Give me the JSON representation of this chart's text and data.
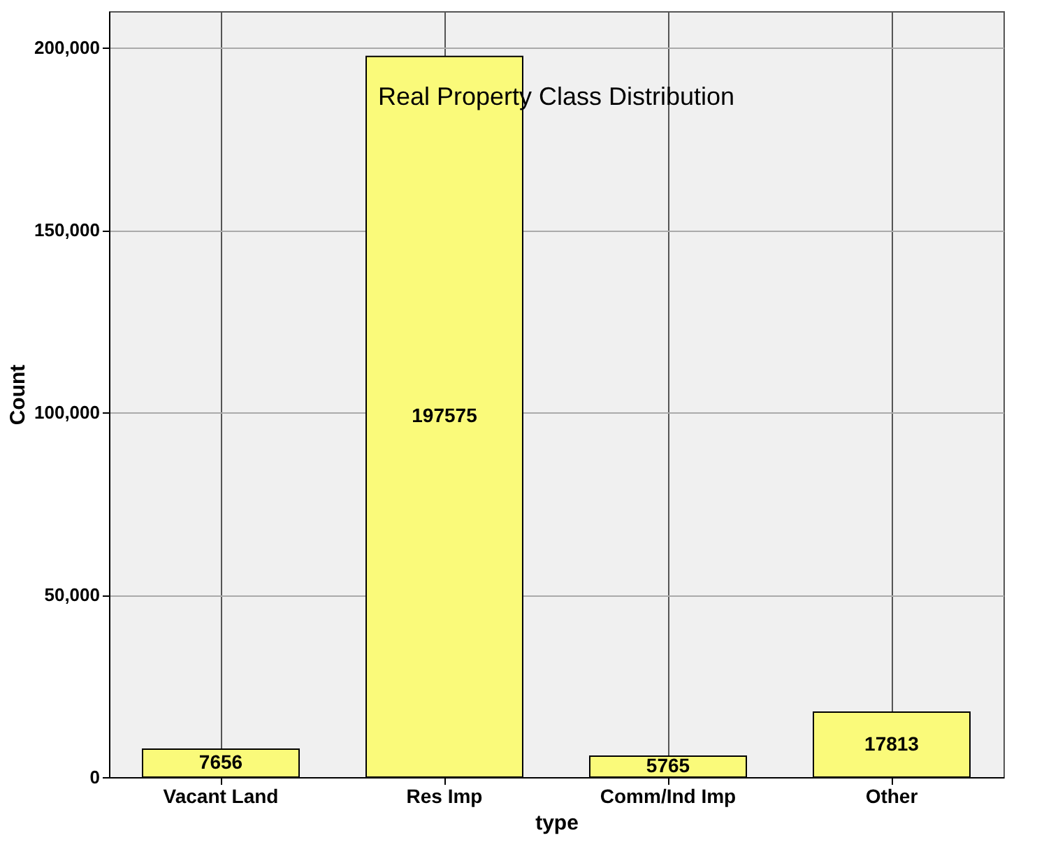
{
  "chart_data": {
    "type": "bar",
    "title": "Real Property Class Distribution",
    "xlabel": "type",
    "ylabel": "Count",
    "categories": [
      "Vacant Land",
      "Res Imp",
      "Comm/Ind Imp",
      "Other"
    ],
    "values": [
      7656,
      197575,
      5765,
      17813
    ],
    "color": "#fafa7a",
    "ylim": [
      0,
      210000
    ],
    "yticks": [
      {
        "value": 0,
        "label": "0"
      },
      {
        "value": 50000,
        "label": "50,000"
      },
      {
        "value": 100000,
        "label": "100,000"
      },
      {
        "value": 150000,
        "label": "150,000"
      },
      {
        "value": 200000,
        "label": "200,000"
      }
    ],
    "grid": true,
    "data_labels": true
  }
}
